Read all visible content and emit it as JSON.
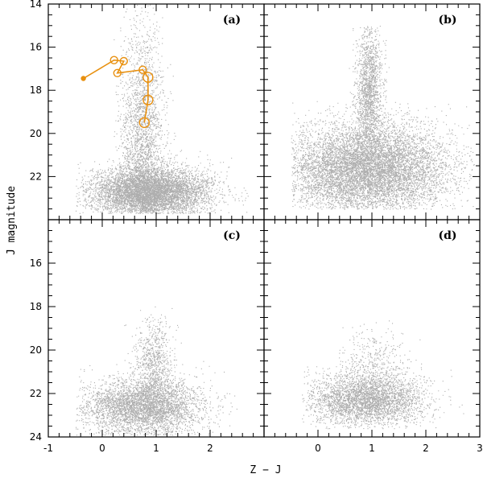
{
  "chart_data": {
    "type": "scatter",
    "xlabel": "Z − J",
    "ylabel": "J magnitude",
    "xlim": [
      -1,
      3
    ],
    "ylim": [
      24,
      14
    ],
    "x_ticks": [
      "-1",
      "0",
      "1",
      "2",
      "3"
    ],
    "y_ticks": [
      "14",
      "16",
      "18",
      "20",
      "22",
      "24"
    ],
    "panels": [
      {
        "label": "(a)",
        "clouds": [
          {
            "x": 0.75,
            "y": 20.5,
            "sx": 0.2,
            "sy": 2.8,
            "n": 2600,
            "xmin": 0.2,
            "xmax": 1.4,
            "ymin": 14.0,
            "ymax": 23.6
          },
          {
            "x": 0.9,
            "y": 22.7,
            "sx": 0.55,
            "sy": 0.55,
            "n": 6500,
            "xmin": -0.5,
            "xmax": 2.7,
            "ymin": 20.2,
            "ymax": 23.7
          }
        ],
        "track": {
          "color": "#e8900f",
          "points": [
            {
              "x": -0.35,
              "y": 17.45,
              "size": "small"
            },
            {
              "x": 0.22,
              "y": 16.6,
              "size": "medium"
            },
            {
              "x": 0.4,
              "y": 16.65,
              "size": "medium"
            },
            {
              "x": 0.28,
              "y": 17.2,
              "size": "medium"
            },
            {
              "x": 0.75,
              "y": 17.05,
              "size": "medium"
            },
            {
              "x": 0.85,
              "y": 17.4,
              "size": "large"
            },
            {
              "x": 0.85,
              "y": 18.45,
              "size": "large"
            },
            {
              "x": 0.78,
              "y": 19.5,
              "size": "large"
            }
          ]
        }
      },
      {
        "label": "(b)",
        "clouds": [
          {
            "x": 0.95,
            "y": 18.0,
            "sx": 0.12,
            "sy": 1.6,
            "n": 1700,
            "xmin": 0.5,
            "xmax": 1.4,
            "ymin": 15.0,
            "ymax": 20.5
          },
          {
            "x": 0.9,
            "y": 21.6,
            "sx": 0.75,
            "sy": 1.05,
            "n": 9000,
            "xmin": -0.5,
            "xmax": 2.9,
            "ymin": 18.5,
            "ymax": 23.5
          }
        ]
      },
      {
        "label": "(c)",
        "clouds": [
          {
            "x": 0.95,
            "y": 20.8,
            "sx": 0.18,
            "sy": 1.1,
            "n": 900,
            "xmin": 0.4,
            "xmax": 1.5,
            "ymin": 17.5,
            "ymax": 23.0
          },
          {
            "x": 0.75,
            "y": 22.6,
            "sx": 0.55,
            "sy": 0.65,
            "n": 4200,
            "xmin": -0.5,
            "xmax": 2.5,
            "ymin": 19.8,
            "ymax": 23.9
          }
        ]
      },
      {
        "label": "(d)",
        "clouds": [
          {
            "x": 0.9,
            "y": 22.3,
            "sx": 0.55,
            "sy": 0.6,
            "n": 3600,
            "xmin": -0.3,
            "xmax": 2.7,
            "ymin": 20.0,
            "ymax": 23.6
          },
          {
            "x": 1.0,
            "y": 20.8,
            "sx": 0.35,
            "sy": 0.9,
            "n": 500,
            "xmin": 0.3,
            "xmax": 2.0,
            "ymin": 18.5,
            "ymax": 22.5
          }
        ]
      }
    ]
  }
}
